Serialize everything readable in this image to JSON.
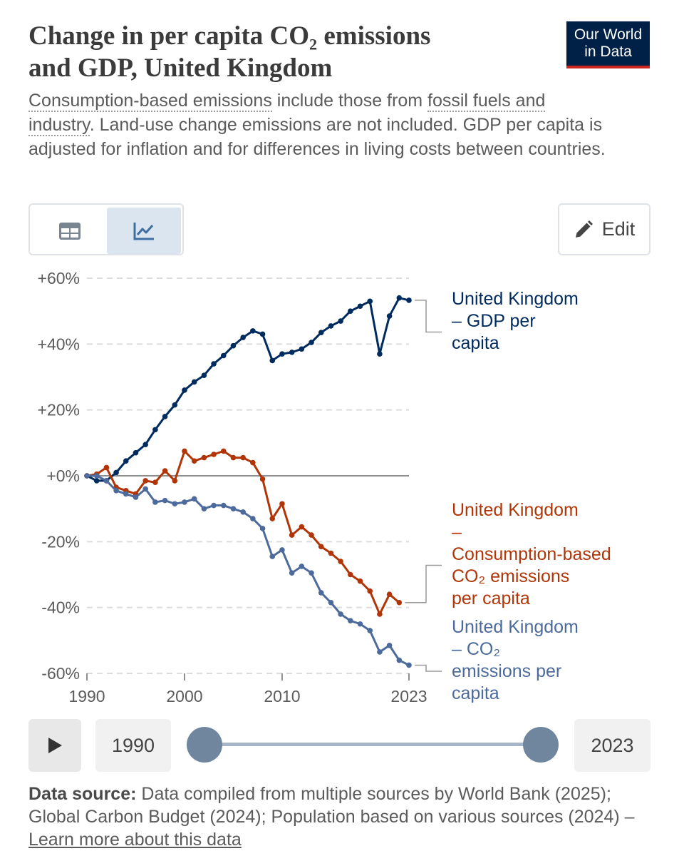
{
  "header": {
    "title_line1": "Change in per capita CO₂ emissions",
    "title_line2": "and GDP, United Kingdom",
    "logo_line1": "Our World",
    "logo_line2": "in Data",
    "subtitle_link1": "Consumption-based emissions",
    "subtitle_text1": " include those from ",
    "subtitle_link2": "fossil fuels and industry",
    "subtitle_text2": ". Land-use change emissions are not included. GDP per capita is adjusted for inflation and for differences in living costs between countries."
  },
  "toolbar": {
    "table_icon": "table-icon",
    "chart_icon": "line-chart-icon",
    "edit_icon": "pencil-icon",
    "edit_label": "Edit"
  },
  "timeline": {
    "play_icon": "play-icon",
    "start_year": "1990",
    "end_year": "2023"
  },
  "footer": {
    "source_label": "Data source:",
    "source_text": " Data compiled from multiple sources by World Bank (2025); Global Carbon Budget (2024); Population based on various sources (2024) – ",
    "learn_more": "Learn more about this data"
  },
  "chart_data": {
    "type": "line",
    "x_ticks": [
      "1990",
      "2000",
      "2010",
      "2023"
    ],
    "y_ticks": [
      "+60%",
      "+40%",
      "+20%",
      "+0%",
      "-20%",
      "-40%",
      "-60%"
    ],
    "ylim": [
      -60,
      60
    ],
    "xlim": [
      1990,
      2023
    ],
    "grid": true,
    "legend": "inline-right",
    "colors": {
      "gdp": "#002b5f",
      "consumption": "#b13507",
      "co2": "#4c6a9c"
    },
    "series": [
      {
        "key": "gdp",
        "label_lines": [
          "United Kingdom",
          "– GDP per",
          "capita"
        ],
        "x": [
          1990,
          1991,
          1992,
          1993,
          1994,
          1995,
          1996,
          1997,
          1998,
          1999,
          2000,
          2001,
          2002,
          2003,
          2004,
          2005,
          2006,
          2007,
          2008,
          2009,
          2010,
          2011,
          2012,
          2013,
          2014,
          2015,
          2016,
          2017,
          2018,
          2019,
          2020,
          2021,
          2022,
          2023
        ],
        "y": [
          0,
          -1.5,
          -1.5,
          1,
          4.5,
          7,
          9.5,
          14,
          18,
          21.5,
          26,
          28.5,
          30.5,
          34,
          36.5,
          39.5,
          42,
          44,
          43,
          35,
          37,
          37.5,
          38.5,
          40.5,
          43.5,
          45.5,
          47,
          50,
          51.5,
          53,
          37,
          48.5,
          54,
          53.3
        ]
      },
      {
        "key": "consumption",
        "label_lines": [
          "United Kingdom",
          "–",
          "Consumption-based",
          "CO₂ emissions",
          "per capita"
        ],
        "x": [
          1990,
          1991,
          1992,
          1993,
          1994,
          1995,
          1996,
          1997,
          1998,
          1999,
          2000,
          2001,
          2002,
          2003,
          2004,
          2005,
          2006,
          2007,
          2008,
          2009,
          2010,
          2011,
          2012,
          2013,
          2014,
          2015,
          2016,
          2017,
          2018,
          2019,
          2020,
          2021,
          2022
        ],
        "y": [
          0,
          0.5,
          2.5,
          -3.5,
          -4.5,
          -5.5,
          -1.5,
          -2,
          1.5,
          -1.5,
          7.5,
          4.5,
          5.5,
          6.5,
          7.5,
          5.5,
          5.5,
          4,
          -1,
          -13,
          -8.5,
          -18,
          -15.5,
          -18,
          -21.5,
          -23.5,
          -26,
          -30,
          -32,
          -35,
          -42,
          -36,
          -38.5
        ]
      },
      {
        "key": "co2",
        "label_lines": [
          "United Kingdom",
          "– CO₂",
          "emissions per",
          "capita"
        ],
        "x": [
          1990,
          1991,
          1992,
          1993,
          1994,
          1995,
          1996,
          1997,
          1998,
          1999,
          2000,
          2001,
          2002,
          2003,
          2004,
          2005,
          2006,
          2007,
          2008,
          2009,
          2010,
          2011,
          2012,
          2013,
          2014,
          2015,
          2016,
          2017,
          2018,
          2019,
          2020,
          2021,
          2022,
          2023
        ],
        "y": [
          0,
          0,
          -1.5,
          -4.5,
          -5.5,
          -6.5,
          -4,
          -8,
          -7.5,
          -8.5,
          -8,
          -7,
          -10,
          -9,
          -9,
          -10,
          -11,
          -13,
          -16,
          -24.5,
          -22.5,
          -29.5,
          -27.5,
          -29.5,
          -35.5,
          -38.5,
          -42,
          -44,
          -45,
          -47,
          -53.5,
          -51.5,
          -56,
          -57.5
        ]
      }
    ]
  }
}
